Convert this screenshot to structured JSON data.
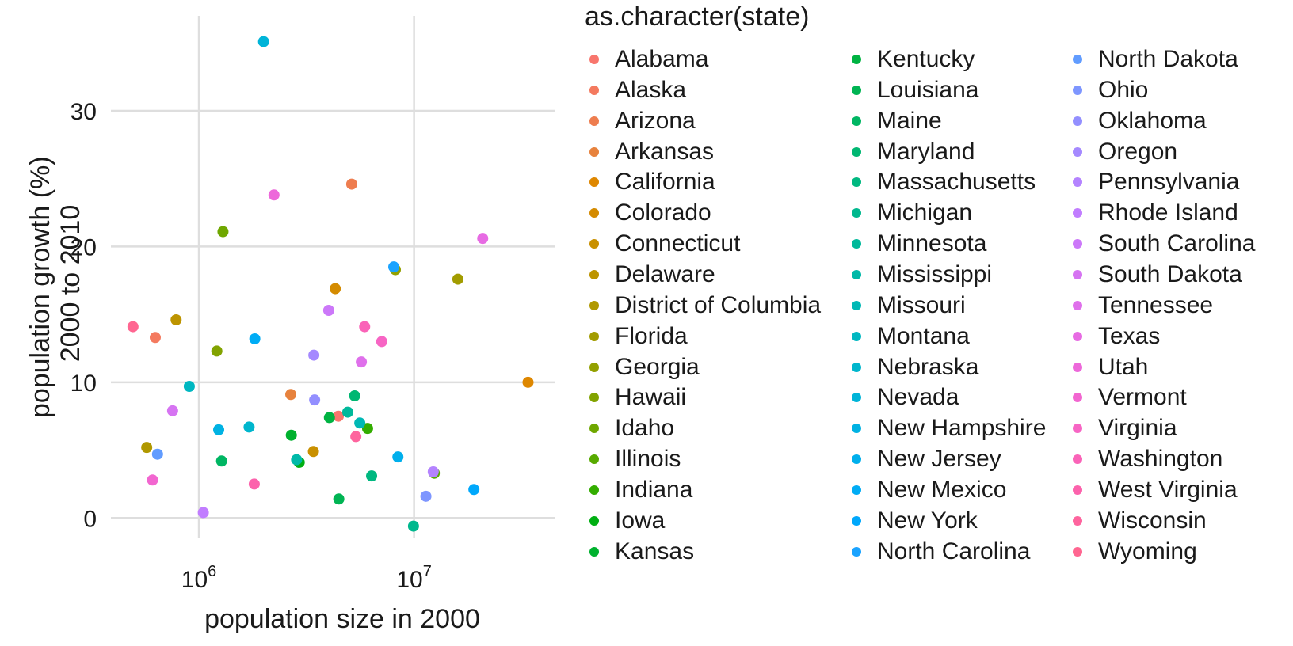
{
  "chart_data": {
    "type": "scatter",
    "xlabel": "population size in 2000",
    "ylabel": [
      "population growth (%)",
      "2000 to 2010"
    ],
    "x_scale": "log10",
    "xlim": [
      390000,
      45000000
    ],
    "ylim": [
      -1.5,
      37
    ],
    "x_ticks": [
      {
        "value": 1000000,
        "base": "10",
        "exp": "6"
      },
      {
        "value": 10000000,
        "base": "10",
        "exp": "7"
      }
    ],
    "y_ticks": [
      0,
      10,
      20,
      30
    ],
    "grid": true,
    "legend": {
      "title": "as.character(state)",
      "position": "right",
      "columns": 3
    },
    "points": [
      {
        "state": "Alabama",
        "color": "#F8766D",
        "x": 4447100,
        "y": 7.5
      },
      {
        "state": "Alaska",
        "color": "#F47A5F",
        "x": 626932,
        "y": 13.3
      },
      {
        "state": "Arizona",
        "color": "#EE7D4F",
        "x": 5130632,
        "y": 24.6
      },
      {
        "state": "Arkansas",
        "color": "#E7823D",
        "x": 2673400,
        "y": 9.1
      },
      {
        "state": "California",
        "color": "#DE8700",
        "x": 33871648,
        "y": 10.0
      },
      {
        "state": "Colorado",
        "color": "#D48B00",
        "x": 4301261,
        "y": 16.9
      },
      {
        "state": "Connecticut",
        "color": "#C99000",
        "x": 3405565,
        "y": 4.9
      },
      {
        "state": "Delaware",
        "color": "#BD9400",
        "x": 783600,
        "y": 14.6
      },
      {
        "state": "District of Columbia",
        "color": "#B09800",
        "x": 572059,
        "y": 5.2
      },
      {
        "state": "Florida",
        "color": "#A29C00",
        "x": 15982378,
        "y": 17.6
      },
      {
        "state": "Georgia",
        "color": "#93A000",
        "x": 8186453,
        "y": 18.3
      },
      {
        "state": "Hawaii",
        "color": "#82A300",
        "x": 1211537,
        "y": 12.3
      },
      {
        "state": "Idaho",
        "color": "#6FA700",
        "x": 1293953,
        "y": 21.1
      },
      {
        "state": "Illinois",
        "color": "#57AA00",
        "x": 12419293,
        "y": 3.3
      },
      {
        "state": "Indiana",
        "color": "#33AD00",
        "x": 6080485,
        "y": 6.6
      },
      {
        "state": "Iowa",
        "color": "#00AF12",
        "x": 2926324,
        "y": 4.1
      },
      {
        "state": "Kansas",
        "color": "#00B12E",
        "x": 2688418,
        "y": 6.1
      },
      {
        "state": "Kentucky",
        "color": "#00B342",
        "x": 4041769,
        "y": 7.4
      },
      {
        "state": "Louisiana",
        "color": "#00B453",
        "x": 4468976,
        "y": 1.4
      },
      {
        "state": "Maine",
        "color": "#00B663",
        "x": 1274923,
        "y": 4.2
      },
      {
        "state": "Maryland",
        "color": "#00B772",
        "x": 5296486,
        "y": 9.0
      },
      {
        "state": "Massachusetts",
        "color": "#00B880",
        "x": 6349097,
        "y": 3.1
      },
      {
        "state": "Michigan",
        "color": "#00B88E",
        "x": 9938444,
        "y": -0.6
      },
      {
        "state": "Minnesota",
        "color": "#00B99B",
        "x": 4919479,
        "y": 7.8
      },
      {
        "state": "Mississippi",
        "color": "#00B9A8",
        "x": 2844658,
        "y": 4.3
      },
      {
        "state": "Missouri",
        "color": "#00B8B5",
        "x": 5595211,
        "y": 7.0
      },
      {
        "state": "Montana",
        "color": "#00B7C1",
        "x": 902195,
        "y": 9.7
      },
      {
        "state": "Nebraska",
        "color": "#00B6CD",
        "x": 1711263,
        "y": 6.7
      },
      {
        "state": "Nevada",
        "color": "#00B4D8",
        "x": 1998257,
        "y": 35.1
      },
      {
        "state": "New Hampshire",
        "color": "#00B2E3",
        "x": 1235786,
        "y": 6.5
      },
      {
        "state": "New Jersey",
        "color": "#00AFEC",
        "x": 8414350,
        "y": 4.5
      },
      {
        "state": "New Mexico",
        "color": "#00ACF5",
        "x": 1819046,
        "y": 13.2
      },
      {
        "state": "New York",
        "color": "#00A8FC",
        "x": 18976457,
        "y": 2.1
      },
      {
        "state": "North Carolina",
        "color": "#1AA3FF",
        "x": 8049313,
        "y": 18.5
      },
      {
        "state": "North Dakota",
        "color": "#619CFF",
        "x": 642200,
        "y": 4.7
      },
      {
        "state": "Ohio",
        "color": "#7E96FF",
        "x": 11353140,
        "y": 1.6
      },
      {
        "state": "Oklahoma",
        "color": "#938FFF",
        "x": 3450654,
        "y": 8.7
      },
      {
        "state": "Oregon",
        "color": "#A589FF",
        "x": 3421399,
        "y": 12.0
      },
      {
        "state": "Pennsylvania",
        "color": "#B483FF",
        "x": 12281054,
        "y": 3.4
      },
      {
        "state": "Rhode Island",
        "color": "#C17DFF",
        "x": 1048319,
        "y": 0.4
      },
      {
        "state": "South Carolina",
        "color": "#CC78F9",
        "x": 4012012,
        "y": 15.3
      },
      {
        "state": "South Dakota",
        "color": "#D674F2",
        "x": 754844,
        "y": 7.9
      },
      {
        "state": "Tennessee",
        "color": "#DF70EB",
        "x": 5689283,
        "y": 11.5
      },
      {
        "state": "Texas",
        "color": "#E76BE3",
        "x": 20851820,
        "y": 20.6
      },
      {
        "state": "Utah",
        "color": "#ED68DA",
        "x": 2233169,
        "y": 23.8
      },
      {
        "state": "Vermont",
        "color": "#F266D0",
        "x": 608827,
        "y": 2.8
      },
      {
        "state": "Virginia",
        "color": "#F765C4",
        "x": 7078515,
        "y": 13.0
      },
      {
        "state": "Washington",
        "color": "#FA63B8",
        "x": 5894121,
        "y": 14.1
      },
      {
        "state": "West Virginia",
        "color": "#FC62AC",
        "x": 1808344,
        "y": 2.5
      },
      {
        "state": "Wisconsin",
        "color": "#FE649E",
        "x": 5363675,
        "y": 6.0
      },
      {
        "state": "Wyoming",
        "color": "#FF6691",
        "x": 493782,
        "y": 14.1
      }
    ]
  }
}
